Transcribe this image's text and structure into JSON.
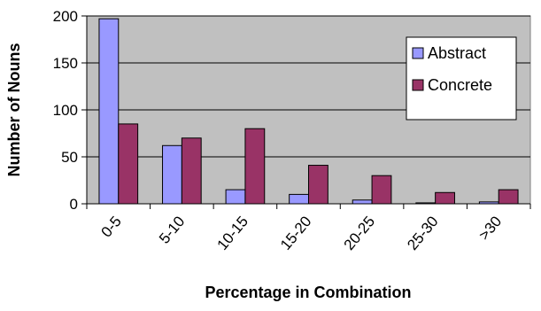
{
  "chart_data": {
    "type": "bar",
    "title": "",
    "xlabel": "Percentage in Combination",
    "ylabel": "Number of Nouns",
    "categories": [
      "0-5",
      "5-10",
      "10-15",
      "15-20",
      "20-25",
      "25-30",
      ">30"
    ],
    "series": [
      {
        "name": "Abstract",
        "color": "#9999ff",
        "values": [
          197,
          62,
          15,
          10,
          4,
          1,
          2
        ]
      },
      {
        "name": "Concrete",
        "color": "#993366",
        "values": [
          85,
          70,
          80,
          41,
          30,
          12,
          15
        ]
      }
    ],
    "ylim": [
      0,
      200
    ],
    "yticks": [
      0,
      50,
      100,
      150,
      200
    ],
    "grid": true,
    "legend": "top-right",
    "plot_background": "#c0c0c0"
  }
}
